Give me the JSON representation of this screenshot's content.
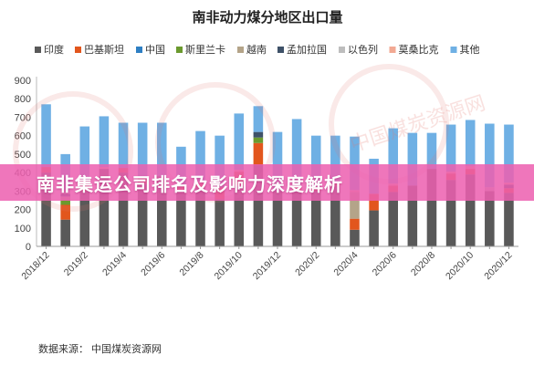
{
  "banner": {
    "text": "南非集运公司排名及影响力深度解析"
  },
  "watermark": {
    "text": "中国煤炭资源网"
  },
  "chart_data": {
    "type": "bar",
    "stacked": true,
    "title": "南非动力煤分地区出口量",
    "source": "数据来源：  中国煤炭资源网",
    "ylim": [
      0,
      900
    ],
    "yticks": [
      0,
      100,
      200,
      300,
      400,
      500,
      600,
      700,
      800,
      900
    ],
    "grid": false,
    "legend_position": "top",
    "categories": [
      "2018/12",
      "2019/1",
      "2019/2",
      "2019/3",
      "2019/4",
      "2019/5",
      "2019/6",
      "2019/7",
      "2019/8",
      "2019/9",
      "2019/10",
      "2019/11",
      "2019/12",
      "2020/1",
      "2020/2",
      "2020/3",
      "2020/4",
      "2020/5",
      "2020/6",
      "2020/7",
      "2020/8",
      "2020/9",
      "2020/10",
      "2020/11",
      "2020/12"
    ],
    "x_tick_labels": [
      "2018/12",
      "",
      "2019/2",
      "",
      "2019/4",
      "",
      "2019/6",
      "",
      "2019/8",
      "",
      "2019/10",
      "",
      "2019/12",
      "",
      "2020/2",
      "",
      "2020/4",
      "",
      "2020/6",
      "",
      "2020/8",
      "",
      "2020/10",
      "",
      "2020/12"
    ],
    "series": [
      {
        "name": "印度",
        "color": "#595959",
        "values": [
          400,
          145,
          300,
          420,
          400,
          340,
          380,
          300,
          320,
          255,
          330,
          440,
          300,
          300,
          300,
          330,
          90,
          195,
          295,
          330,
          420,
          360,
          390,
          300,
          290
        ]
      },
      {
        "name": "巴基斯坦",
        "color": "#e2561d",
        "values": [
          30,
          80,
          40,
          0,
          25,
          30,
          0,
          25,
          20,
          65,
          75,
          120,
          0,
          20,
          10,
          10,
          60,
          90,
          35,
          0,
          0,
          35,
          30,
          0,
          25
        ]
      },
      {
        "name": "中国",
        "color": "#2e7fc3",
        "values": [
          0,
          0,
          0,
          0,
          0,
          0,
          0,
          0,
          0,
          0,
          0,
          0,
          0,
          0,
          0,
          0,
          0,
          0,
          0,
          0,
          0,
          0,
          0,
          0,
          0
        ]
      },
      {
        "name": "斯里兰卡",
        "color": "#6b9a2e",
        "values": [
          0,
          25,
          0,
          0,
          0,
          0,
          0,
          0,
          0,
          0,
          0,
          30,
          0,
          0,
          0,
          0,
          0,
          0,
          0,
          0,
          0,
          0,
          0,
          0,
          0
        ]
      },
      {
        "name": "越南",
        "color": "#b4a489",
        "values": [
          0,
          20,
          0,
          0,
          0,
          0,
          0,
          0,
          0,
          0,
          0,
          0,
          0,
          0,
          0,
          0,
          145,
          0,
          0,
          0,
          0,
          0,
          0,
          0,
          0
        ]
      },
      {
        "name": "孟加拉国",
        "color": "#3e5168",
        "values": [
          0,
          15,
          0,
          0,
          0,
          0,
          0,
          0,
          0,
          0,
          0,
          30,
          0,
          0,
          0,
          0,
          0,
          0,
          0,
          0,
          0,
          0,
          0,
          0,
          20
        ]
      },
      {
        "name": "以色列",
        "color": "#bdbdbd",
        "values": [
          0,
          20,
          0,
          0,
          0,
          0,
          0,
          0,
          0,
          0,
          0,
          0,
          0,
          0,
          0,
          0,
          0,
          0,
          0,
          0,
          0,
          0,
          0,
          20,
          0
        ]
      },
      {
        "name": "莫桑比克",
        "color": "#f2a993",
        "values": [
          0,
          0,
          20,
          10,
          0,
          0,
          0,
          0,
          10,
          0,
          10,
          0,
          0,
          10,
          10,
          0,
          10,
          0,
          10,
          0,
          0,
          10,
          15,
          0,
          10
        ]
      },
      {
        "name": "其他",
        "color": "#6fb0e4",
        "values": [
          340,
          195,
          290,
          275,
          245,
          300,
          290,
          215,
          275,
          280,
          305,
          140,
          320,
          360,
          280,
          260,
          290,
          190,
          300,
          285,
          195,
          255,
          250,
          345,
          315
        ]
      }
    ]
  }
}
